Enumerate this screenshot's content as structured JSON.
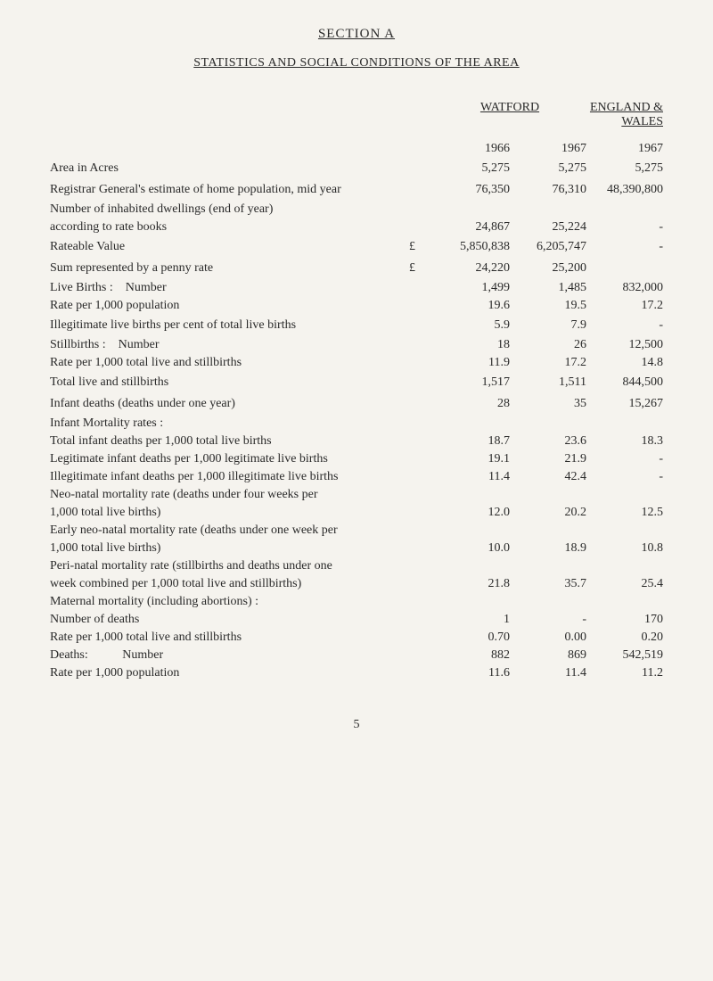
{
  "section_title": "SECTION A",
  "subtitle": "STATISTICS AND SOCIAL CONDITIONS OF THE AREA",
  "header_watford": "WATFORD",
  "header_england": "ENGLAND & WALES",
  "year_1966": "1966",
  "year_1967a": "1967",
  "year_1967b": "1967",
  "rows": {
    "area_acres": {
      "label": "Area in Acres",
      "v1": "5,275",
      "v2": "5,275",
      "v3": "5,275"
    },
    "registrar": {
      "label": "Registrar General's estimate of home population, mid year",
      "v1": "76,350",
      "v2": "76,310",
      "v3": "48,390,800"
    },
    "dwellings_header": "Number of inhabited dwellings (end of year)",
    "dwellings_sub": {
      "label": "according to rate books",
      "v1": "24,867",
      "v2": "25,224",
      "v3": "-"
    },
    "rateable": {
      "label": "Rateable Value",
      "prefix": "£",
      "v1": "5,850,838",
      "v2": "6,205,747",
      "v3": "-"
    },
    "penny": {
      "label": "Sum represented by a penny rate",
      "prefix": "£",
      "v1": "24,220",
      "v2": "25,200",
      "v3": ""
    },
    "live_births_num": {
      "label": "Live Births :    Number",
      "v1": "1,499",
      "v2": "1,485",
      "v3": "832,000"
    },
    "live_births_rate": {
      "label": "Rate per 1,000 population",
      "v1": "19.6",
      "v2": "19.5",
      "v3": "17.2"
    },
    "illegit": {
      "label": "Illegitimate live births per cent of total live births",
      "v1": "5.9",
      "v2": "7.9",
      "v3": "-"
    },
    "stillbirths_num": {
      "label": "Stillbirths :    Number",
      "v1": "18",
      "v2": "26",
      "v3": "12,500"
    },
    "stillbirths_rate": {
      "label": "Rate per 1,000 total live and stillbirths",
      "v1": "11.9",
      "v2": "17.2",
      "v3": "14.8"
    },
    "total_live_still": {
      "label": "Total live and stillbirths",
      "v1": "1,517",
      "v2": "1,511",
      "v3": "844,500"
    },
    "infant_deaths": {
      "label": "Infant deaths  (deaths under one year)",
      "v1": "28",
      "v2": "35",
      "v3": "15,267"
    },
    "imr_header": "Infant Mortality rates :",
    "imr_total": {
      "label": "Total infant deaths per 1,000 total live births",
      "v1": "18.7",
      "v2": "23.6",
      "v3": "18.3"
    },
    "imr_legit": {
      "label": "Legitimate infant deaths per 1,000 legitimate live births",
      "v1": "19.1",
      "v2": "21.9",
      "v3": "-"
    },
    "imr_illegit": {
      "label": "Illegitimate infant deaths per 1,000 illegitimate live births",
      "v1": "11.4",
      "v2": "42.4",
      "v3": "-"
    },
    "neonatal_l1": "Neo-natal mortality rate (deaths under four weeks per",
    "neonatal_l2": {
      "label": "1,000 total live births)",
      "v1": "12.0",
      "v2": "20.2",
      "v3": "12.5"
    },
    "early_l1": "Early neo-natal mortality rate (deaths under one week per",
    "early_l2": {
      "label": "1,000 total live births)",
      "v1": "10.0",
      "v2": "18.9",
      "v3": "10.8"
    },
    "peri_l1": "Peri-natal mortality rate (stillbirths and deaths under one",
    "peri_l2": {
      "label": "week combined per 1,000 total live and stillbirths)",
      "v1": "21.8",
      "v2": "35.7",
      "v3": "25.4"
    },
    "maternal_header": "Maternal mortality (including abortions) :",
    "maternal_num": {
      "label": "Number of deaths",
      "v1": "1",
      "v2": "-",
      "v3": "170"
    },
    "maternal_rate": {
      "label": "Rate per 1,000 total live and stillbirths",
      "v1": "0.70",
      "v2": "0.00",
      "v3": "0.20"
    },
    "deaths_num": {
      "label": "Deaths:           Number",
      "v1": "882",
      "v2": "869",
      "v3": "542,519"
    },
    "deaths_rate": {
      "label": "Rate per 1,000 population",
      "v1": "11.6",
      "v2": "11.4",
      "v3": "11.2"
    }
  },
  "page_number": "5"
}
